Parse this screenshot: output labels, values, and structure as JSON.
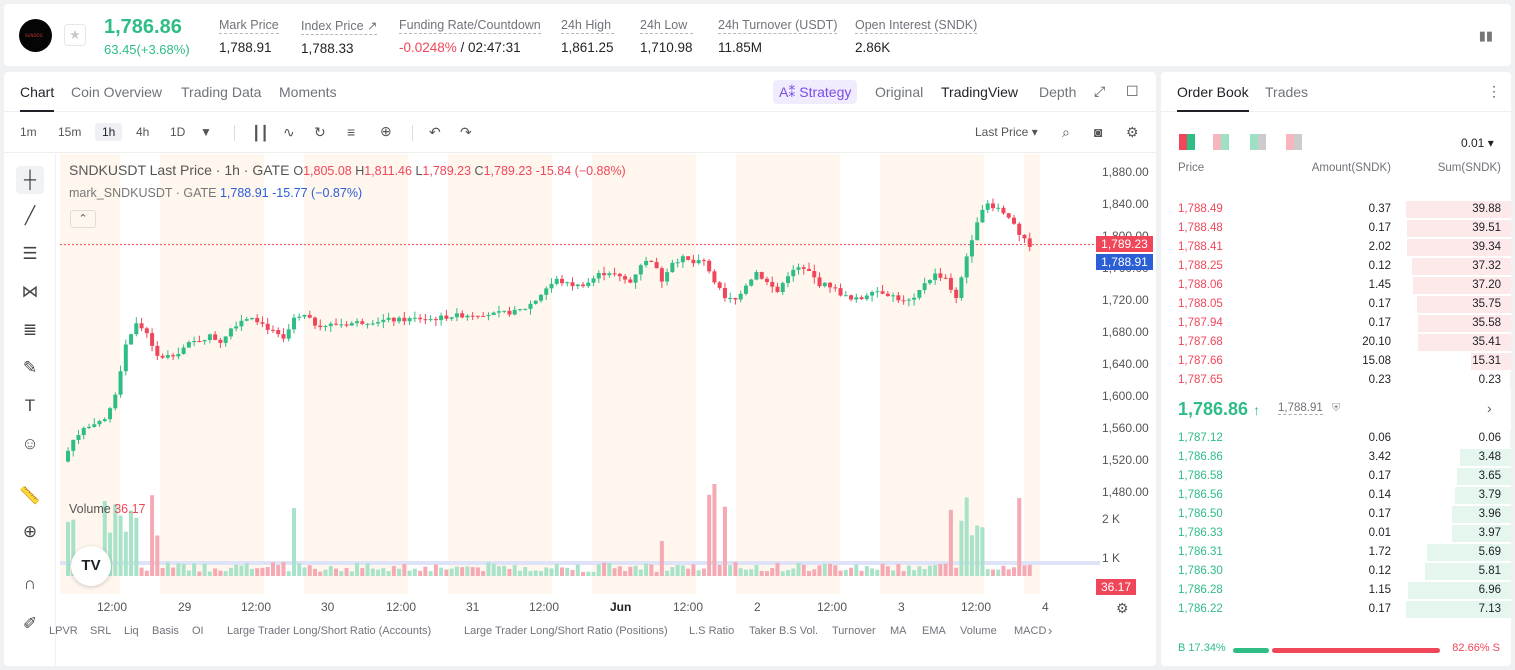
{
  "ticker": {
    "logo_text": "SUNDOG",
    "price": "1,786.86",
    "change": "63.45(+3.68%)",
    "stats": [
      {
        "label": "Mark Price",
        "value": "1,788.91"
      },
      {
        "label": "Index Price ↗",
        "value": "1,788.33"
      },
      {
        "label": "Funding Rate/Countdown",
        "value": "-0.0248%",
        "extra": " / 02:47:31"
      },
      {
        "label": "24h High",
        "value": "1,861.25"
      },
      {
        "label": "24h Low",
        "value": "1,710.98"
      },
      {
        "label": "24h Turnover (USDT)",
        "value": "11.85M"
      },
      {
        "label": "Open Interest (SNDK)",
        "value": "2.86K"
      }
    ]
  },
  "chart_tabs": [
    "Chart",
    "Coin Overview",
    "Trading Data",
    "Moments"
  ],
  "view_tabs": {
    "strategy": "Strategy",
    "original": "Original",
    "tradingview": "TradingView",
    "depth": "Depth"
  },
  "timeframes": [
    "1m",
    "15m",
    "1h",
    "4h",
    "1D"
  ],
  "price_type": "Last Price",
  "legend": {
    "symbol": "SNDKUSDT Last Price · 1h · GATE",
    "o": "1,805.08",
    "h": "1,811.46",
    "l": "1,789.23",
    "c": "1,789.23",
    "chg": "-15.84 (−0.88%)",
    "mark": "mark_SNDKUSDT · GATE",
    "mark_val": "1,788.91",
    "mark_chg": "-15.77 (−0.87%)"
  },
  "volume": {
    "label": "Volume",
    "value": "36.17"
  },
  "chart_data": {
    "type": "candlestick",
    "yticks": [
      "1,880.00",
      "1,840.00",
      "1,800.00",
      "1,760.00",
      "1,720.00",
      "1,680.00",
      "1,640.00",
      "1,600.00",
      "1,560.00",
      "1,520.00",
      "1,480.00"
    ],
    "ylim": [
      1480,
      1880
    ],
    "vol_ticks": [
      "2 K",
      "1 K"
    ],
    "xticks": [
      "12:00",
      "29",
      "12:00",
      "30",
      "12:00",
      "31",
      "12:00",
      "Jun",
      "12:00",
      "2",
      "12:00",
      "3",
      "12:00",
      "4"
    ],
    "last_price_tag": "1,789.23",
    "mark_price_tag": "1,788.91",
    "vol_tag": "36.17",
    "close_path": [
      1518,
      1545,
      1560,
      1562,
      1570,
      1600,
      1665,
      1690,
      1680,
      1648,
      1650,
      1655,
      1665,
      1670,
      1675,
      1668,
      1685,
      1695,
      1700,
      1690,
      1680,
      1670,
      1695,
      1700,
      1690,
      1688,
      1690,
      1690,
      1692,
      1693,
      1694,
      1695,
      1695,
      1696,
      1697,
      1696,
      1698,
      1700,
      1701,
      1702,
      1703,
      1702,
      1704,
      1705,
      1710,
      1720,
      1735,
      1745,
      1740,
      1738,
      1742,
      1752,
      1755,
      1748,
      1742,
      1765,
      1770,
      1745,
      1768,
      1772,
      1766,
      1768,
      1745,
      1722,
      1720,
      1740,
      1755,
      1742,
      1730,
      1752,
      1760,
      1755,
      1740,
      1738,
      1728,
      1720,
      1722,
      1733,
      1730,
      1725,
      1718,
      1720,
      1742,
      1752,
      1748,
      1720,
      1775,
      1820,
      1840,
      1835,
      1825,
      1800,
      1789
    ]
  },
  "bottom_tabs": [
    "LPVR",
    "SRL",
    "Liq",
    "Basis",
    "OI",
    "Large Trader Long/Short Ratio (Accounts)",
    "Large Trader Long/Short Ratio (Positions)",
    "L.S Ratio",
    "Taker B.S Vol.",
    "Turnover",
    "MA",
    "EMA",
    "Volume",
    "MACD"
  ],
  "book": {
    "tabs": [
      "Order Book",
      "Trades"
    ],
    "precision": "0.01",
    "headers": [
      "Price",
      "Amount(SNDK)",
      "Sum(SNDK)"
    ],
    "asks": [
      {
        "p": "1,788.49",
        "a": "0.37",
        "s": "39.88",
        "d": 1.0
      },
      {
        "p": "1,788.48",
        "a": "0.17",
        "s": "39.51",
        "d": 0.99
      },
      {
        "p": "1,788.41",
        "a": "2.02",
        "s": "39.34",
        "d": 0.99
      },
      {
        "p": "1,788.25",
        "a": "0.12",
        "s": "37.32",
        "d": 0.94
      },
      {
        "p": "1,788.06",
        "a": "1.45",
        "s": "37.20",
        "d": 0.93
      },
      {
        "p": "1,788.05",
        "a": "0.17",
        "s": "35.75",
        "d": 0.9
      },
      {
        "p": "1,787.94",
        "a": "0.17",
        "s": "35.58",
        "d": 0.89
      },
      {
        "p": "1,787.68",
        "a": "20.10",
        "s": "35.41",
        "d": 0.89
      },
      {
        "p": "1,787.66",
        "a": "15.08",
        "s": "15.31",
        "d": 0.38
      },
      {
        "p": "1,787.65",
        "a": "0.23",
        "s": "0.23",
        "d": 0.01
      }
    ],
    "last": "1,786.86",
    "last_arrow": "↑",
    "mark": "1,788.91",
    "bids": [
      {
        "p": "1,787.12",
        "a": "0.06",
        "s": "0.06",
        "d": 0.01
      },
      {
        "p": "1,786.86",
        "a": "3.42",
        "s": "3.48",
        "d": 0.49
      },
      {
        "p": "1,786.58",
        "a": "0.17",
        "s": "3.65",
        "d": 0.51
      },
      {
        "p": "1,786.56",
        "a": "0.14",
        "s": "3.79",
        "d": 0.53
      },
      {
        "p": "1,786.50",
        "a": "0.17",
        "s": "3.96",
        "d": 0.56
      },
      {
        "p": "1,786.33",
        "a": "0.01",
        "s": "3.97",
        "d": 0.56
      },
      {
        "p": "1,786.31",
        "a": "1.72",
        "s": "5.69",
        "d": 0.8
      },
      {
        "p": "1,786.30",
        "a": "0.12",
        "s": "5.81",
        "d": 0.82
      },
      {
        "p": "1,786.28",
        "a": "1.15",
        "s": "6.96",
        "d": 0.98
      },
      {
        "p": "1,786.22",
        "a": "0.17",
        "s": "7.13",
        "d": 1.0
      }
    ],
    "buy_ratio": "17.34%",
    "sell_ratio": "82.66%",
    "buy_fraction": 0.1734,
    "b_label": "B",
    "s_label": "S"
  },
  "colors": {
    "up": "#2ebd85",
    "down": "#f0465a",
    "mark": "#2a5fd6",
    "accent": "#7b4ce8"
  }
}
